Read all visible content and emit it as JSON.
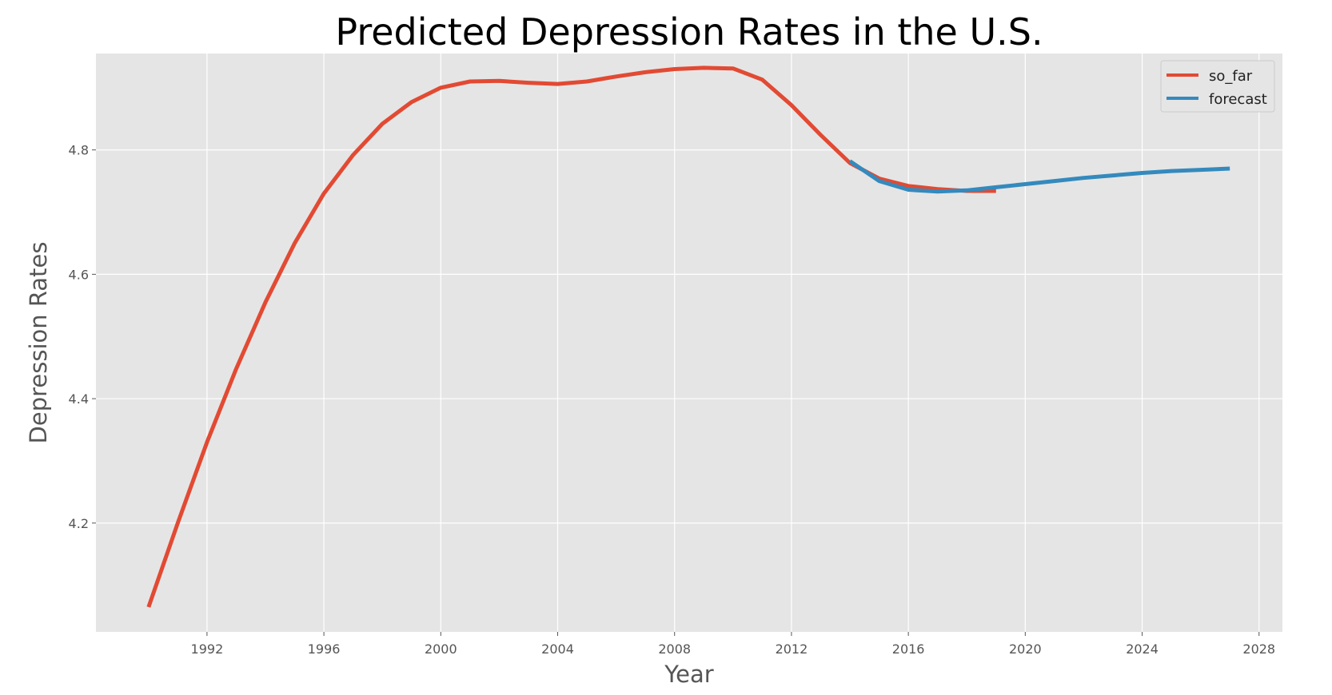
{
  "colors": {
    "plot_background": "#e5e5e5",
    "grid": "#ffffff",
    "so_far": "#e24a33",
    "forecast": "#348abd"
  },
  "chart_data": {
    "type": "line",
    "title": "Predicted Depression Rates in the U.S.",
    "xlabel": "Year",
    "ylabel": "Depression Rates",
    "xlim": [
      1988.2,
      2028.8
    ],
    "ylim": [
      4.025,
      4.955
    ],
    "xticks": [
      1992,
      1996,
      2000,
      2004,
      2008,
      2012,
      2016,
      2020,
      2024,
      2028
    ],
    "yticks": [
      4.2,
      4.4,
      4.6,
      4.8
    ],
    "grid": true,
    "legend_position": "top-right",
    "series": [
      {
        "name": "so_far",
        "color": "#e24a33",
        "x": [
          1990,
          1991,
          1992,
          1993,
          1994,
          1995,
          1996,
          1997,
          1998,
          1999,
          2000,
          2001,
          2002,
          2003,
          2004,
          2005,
          2006,
          2007,
          2008,
          2009,
          2010,
          2011,
          2012,
          2013,
          2014,
          2015,
          2016,
          2017,
          2018,
          2019
        ],
        "y": [
          4.065,
          4.2,
          4.33,
          4.448,
          4.555,
          4.65,
          4.73,
          4.792,
          4.842,
          4.877,
          4.9,
          4.91,
          4.911,
          4.908,
          4.906,
          4.91,
          4.918,
          4.925,
          4.93,
          4.932,
          4.931,
          4.913,
          4.872,
          4.824,
          4.779,
          4.754,
          4.742,
          4.737,
          4.734,
          4.734
        ]
      },
      {
        "name": "forecast",
        "color": "#348abd",
        "x": [
          2014,
          2015,
          2016,
          2017,
          2018,
          2019,
          2020,
          2021,
          2022,
          2023,
          2024,
          2025,
          2026,
          2027
        ],
        "y": [
          4.782,
          4.75,
          4.736,
          4.733,
          4.735,
          4.74,
          4.745,
          4.75,
          4.755,
          4.759,
          4.763,
          4.766,
          4.768,
          4.77
        ]
      }
    ]
  }
}
